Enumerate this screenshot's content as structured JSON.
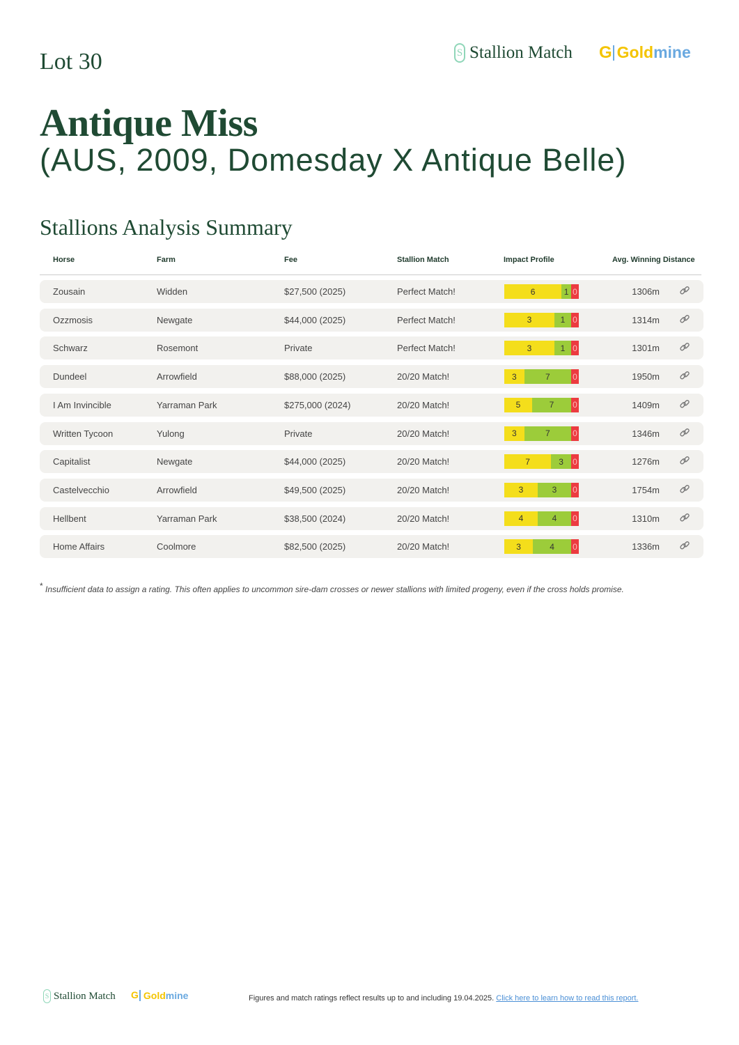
{
  "lot": "Lot 30",
  "logos": {
    "stallion_match": "Stallion Match",
    "goldmine_gold": "Gold",
    "goldmine_mine": "mine"
  },
  "horse": {
    "name": "Antique Miss",
    "details": "(AUS, 2009, Domesday X Antique Belle)"
  },
  "section_title": "Stallions Analysis Summary",
  "columns": [
    "Horse",
    "Farm",
    "Fee",
    "Stallion Match",
    "Impact Profile",
    "Avg. Winning Distance"
  ],
  "colors": {
    "yellow": "#f4de1b",
    "green": "#9ccc3a",
    "red": "#ec3b40",
    "brand_green": "#1f4a33"
  },
  "rows": [
    {
      "horse": "Zousain",
      "farm": "Widden",
      "fee": "$27,500 (2025)",
      "match": "Perfect Match!",
      "impact": [
        6,
        1,
        0
      ],
      "distance": "1306m"
    },
    {
      "horse": "Ozzmosis",
      "farm": "Newgate",
      "fee": "$44,000 (2025)",
      "match": "Perfect Match!",
      "impact": [
        3,
        1,
        0
      ],
      "distance": "1314m"
    },
    {
      "horse": "Schwarz",
      "farm": "Rosemont",
      "fee": "Private",
      "match": "Perfect Match!",
      "impact": [
        3,
        1,
        0
      ],
      "distance": "1301m"
    },
    {
      "horse": "Dundeel",
      "farm": "Arrowfield",
      "fee": "$88,000 (2025)",
      "match": "20/20 Match!",
      "impact": [
        3,
        7,
        0
      ],
      "distance": "1950m"
    },
    {
      "horse": "I Am Invincible",
      "farm": "Yarraman Park",
      "fee": "$275,000 (2024)",
      "match": "20/20 Match!",
      "impact": [
        5,
        7,
        0
      ],
      "distance": "1409m"
    },
    {
      "horse": "Written Tycoon",
      "farm": "Yulong",
      "fee": "Private",
      "match": "20/20 Match!",
      "impact": [
        3,
        7,
        0
      ],
      "distance": "1346m"
    },
    {
      "horse": "Capitalist",
      "farm": "Newgate",
      "fee": "$44,000 (2025)",
      "match": "20/20 Match!",
      "impact": [
        7,
        3,
        0
      ],
      "distance": "1276m"
    },
    {
      "horse": "Castelvecchio",
      "farm": "Arrowfield",
      "fee": "$49,500 (2025)",
      "match": "20/20 Match!",
      "impact": [
        3,
        3,
        0
      ],
      "distance": "1754m"
    },
    {
      "horse": "Hellbent",
      "farm": "Yarraman Park",
      "fee": "$38,500 (2024)",
      "match": "20/20 Match!",
      "impact": [
        4,
        4,
        0
      ],
      "distance": "1310m"
    },
    {
      "horse": "Home Affairs",
      "farm": "Coolmore",
      "fee": "$82,500 (2025)",
      "match": "20/20 Match!",
      "impact": [
        3,
        4,
        0
      ],
      "distance": "1336m"
    }
  ],
  "footnote": {
    "mark": "*",
    "text": "Insufficient data to assign a rating. This often applies to uncommon sire-dam crosses or newer stallions with limited progeny, even if the cross holds promise."
  },
  "footer": {
    "text": "Figures and match ratings reflect results up to and including 19.04.2025. ",
    "link": "Click here to learn how to read this report."
  }
}
